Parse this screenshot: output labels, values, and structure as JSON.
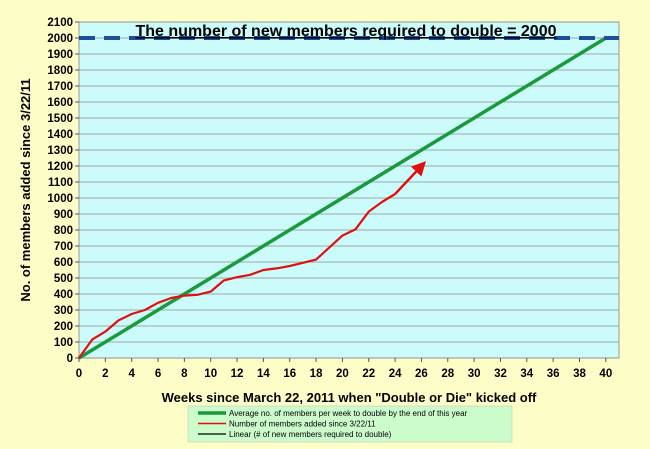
{
  "chart_data": {
    "type": "line",
    "title": "The number of new members required to double = 2000",
    "xlabel": "Weeks since March 22, 2011 when \"Double or Die\" kicked off",
    "ylabel": "No. of  members added since 3/22/11",
    "xlim": [
      0,
      41
    ],
    "ylim": [
      0,
      2100
    ],
    "x_ticks": [
      "0",
      "2",
      "4",
      "6",
      "8",
      "10",
      "12",
      "14",
      "16",
      "18",
      "20",
      "22",
      "24",
      "26",
      "28",
      "30",
      "32",
      "34",
      "36",
      "38",
      "40"
    ],
    "y_ticks": [
      "0",
      "100",
      "200",
      "300",
      "400",
      "500",
      "600",
      "700",
      "800",
      "900",
      "1000",
      "1100",
      "1200",
      "1300",
      "1400",
      "1500",
      "1600",
      "1700",
      "1800",
      "1900",
      "2000",
      "2100"
    ],
    "grid": "horizontal",
    "legend_position": "bottom",
    "series": [
      {
        "name": "Average no. of members per week to double by the end of this year",
        "color": "#1a9a3c",
        "style": "solid",
        "x": [
          0,
          40
        ],
        "y": [
          0,
          2000
        ]
      },
      {
        "name": "Number of members added since 3/22/11",
        "color": "#e01010",
        "style": "solid",
        "x": [
          0,
          1,
          2,
          3,
          4,
          5,
          6,
          7,
          8,
          9,
          10,
          11,
          12,
          13,
          14,
          15,
          16,
          17,
          18,
          19,
          20,
          21,
          22,
          23,
          24
        ],
        "y": [
          0,
          115,
          165,
          235,
          275,
          300,
          345,
          375,
          390,
          395,
          415,
          485,
          505,
          520,
          550,
          560,
          575,
          595,
          615,
          690,
          765,
          805,
          915,
          975,
          1025
        ]
      },
      {
        "name": "Linear (# of new members required to double)",
        "color": "#1f4e9a",
        "style": "dashed",
        "x": [
          0,
          41
        ],
        "y": [
          2000,
          2000
        ]
      }
    ],
    "annotations": [
      {
        "type": "arrow",
        "color": "#e01010",
        "from": [
          24,
          1025
        ],
        "to": [
          26,
          1200
        ]
      }
    ]
  }
}
